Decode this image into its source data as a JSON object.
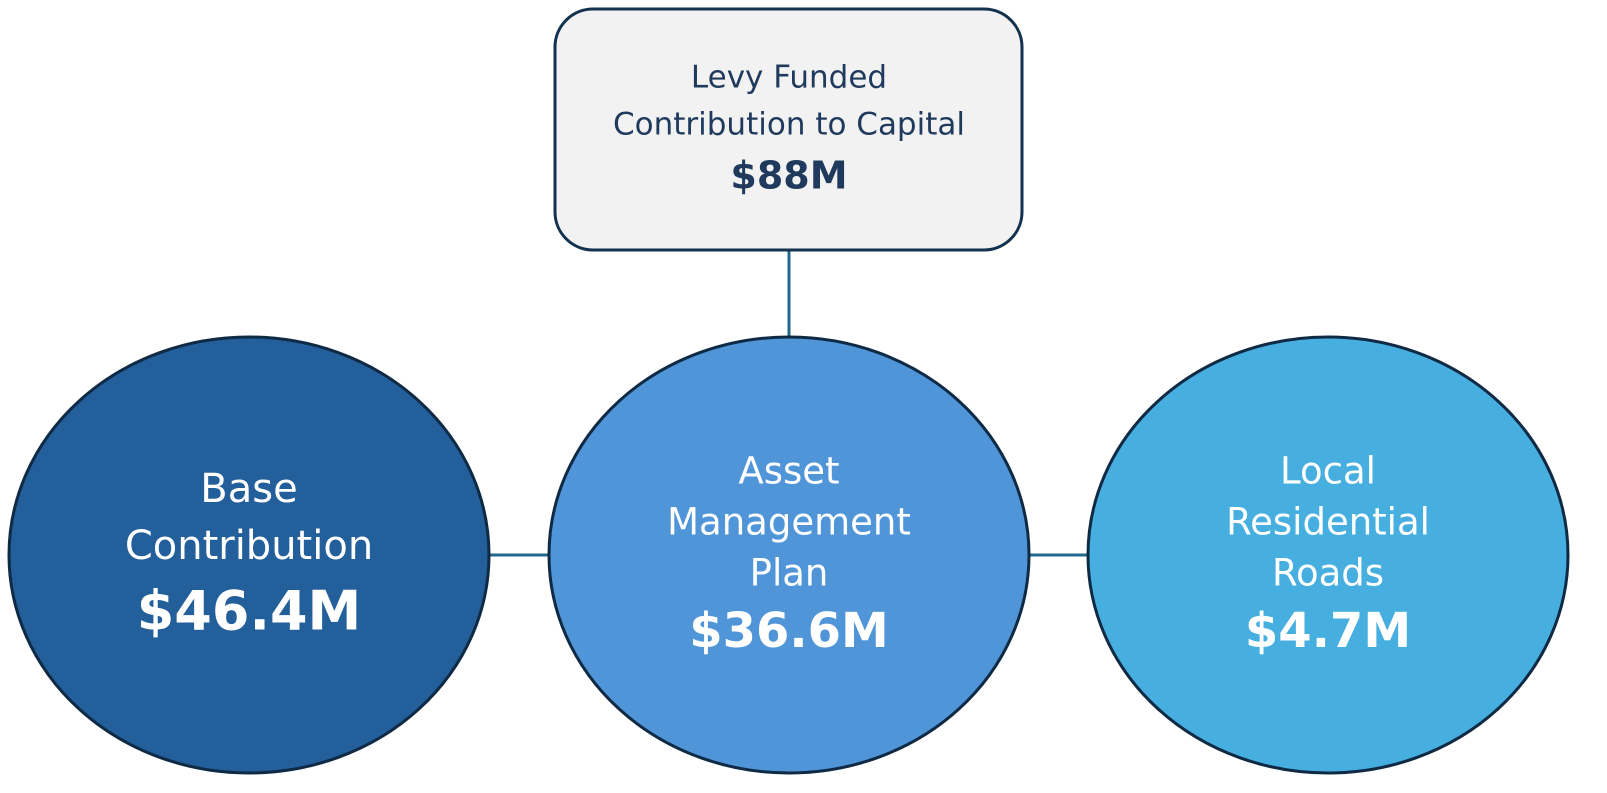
{
  "root": {
    "label": [
      "Levy Funded",
      "Contribution to Capital"
    ],
    "value": "$88M"
  },
  "nodes": [
    {
      "label": [
        "Base",
        "Contribution"
      ],
      "value": "$46.4M"
    },
    {
      "label": [
        "Asset",
        "Management",
        "Plan"
      ],
      "value": "$36.6M"
    },
    {
      "label": [
        "Local",
        "Residential",
        "Roads"
      ],
      "value": "$4.7M"
    }
  ]
}
